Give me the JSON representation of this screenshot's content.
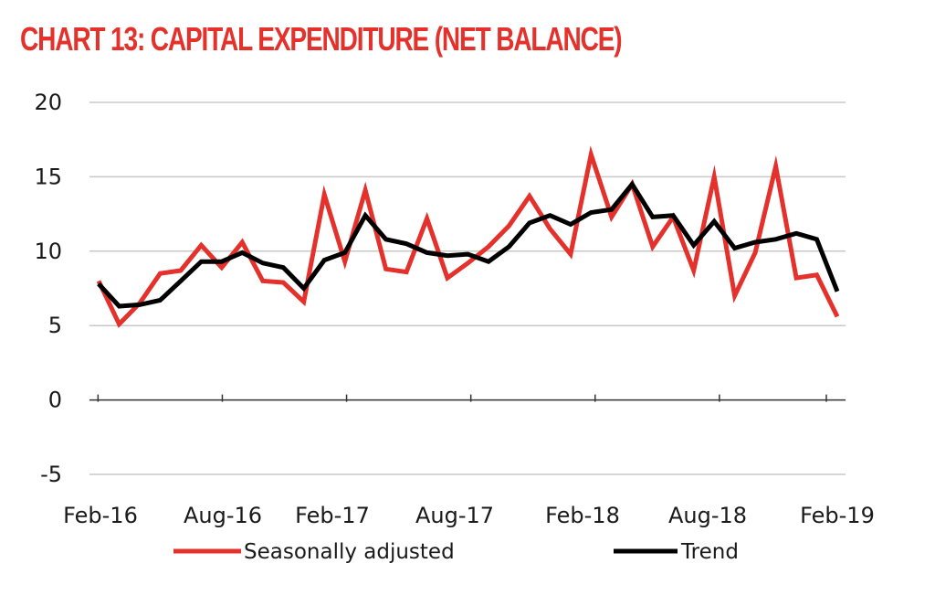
{
  "title": "CHART 13: CAPITAL EXPENDITURE (NET BALANCE)",
  "colors": {
    "title": "#e4312b",
    "seasonally_adjusted": "#e4312b",
    "trend": "#000000",
    "grid": "#c8c8c8",
    "axis": "#333333"
  },
  "chart_data": {
    "type": "line",
    "title": "CHART 13: CAPITAL EXPENDITURE (NET BALANCE)",
    "xlabel": "",
    "ylabel": "",
    "ylim": [
      -5,
      20
    ],
    "yticks": [
      -5,
      0,
      5,
      10,
      15,
      20
    ],
    "grid": true,
    "legend_position": "bottom",
    "x": [
      "Feb-16",
      "Mar-16",
      "Apr-16",
      "May-16",
      "Jun-16",
      "Jul-16",
      "Aug-16",
      "Sep-16",
      "Oct-16",
      "Nov-16",
      "Dec-16",
      "Jan-17",
      "Feb-17",
      "Mar-17",
      "Apr-17",
      "May-17",
      "Jun-17",
      "Jul-17",
      "Aug-17",
      "Sep-17",
      "Oct-17",
      "Nov-17",
      "Dec-17",
      "Jan-18",
      "Feb-18",
      "Mar-18",
      "Apr-18",
      "May-18",
      "Jun-18",
      "Jul-18",
      "Aug-18",
      "Sep-18",
      "Oct-18",
      "Nov-18",
      "Dec-18",
      "Jan-19",
      "Feb-19"
    ],
    "xtick_labels": [
      "Feb-16",
      "Aug-16",
      "Feb-17",
      "Aug-17",
      "Feb-18",
      "Aug-18",
      "Feb-19"
    ],
    "series": [
      {
        "name": "Seasonally adjusted",
        "values": [
          8.0,
          5.1,
          6.5,
          8.5,
          8.7,
          10.4,
          8.9,
          10.6,
          8.0,
          7.9,
          6.6,
          13.8,
          9.3,
          14.1,
          8.8,
          8.6,
          12.2,
          8.2,
          9.2,
          10.3,
          11.7,
          13.7,
          11.5,
          9.8,
          16.5,
          12.3,
          14.5,
          10.3,
          12.3,
          8.7,
          15.0,
          7.0,
          9.9,
          15.7,
          8.2,
          8.4,
          5.6
        ]
      },
      {
        "name": "Trend",
        "values": [
          7.8,
          6.3,
          6.4,
          6.7,
          8.0,
          9.3,
          9.3,
          9.9,
          9.2,
          8.9,
          7.5,
          9.4,
          9.9,
          12.4,
          10.8,
          10.5,
          9.9,
          9.7,
          9.8,
          9.3,
          10.3,
          11.9,
          12.4,
          11.8,
          12.6,
          12.8,
          14.5,
          12.3,
          12.4,
          10.4,
          12.0,
          10.2,
          10.6,
          10.8,
          11.2,
          10.8,
          7.3
        ]
      }
    ]
  }
}
